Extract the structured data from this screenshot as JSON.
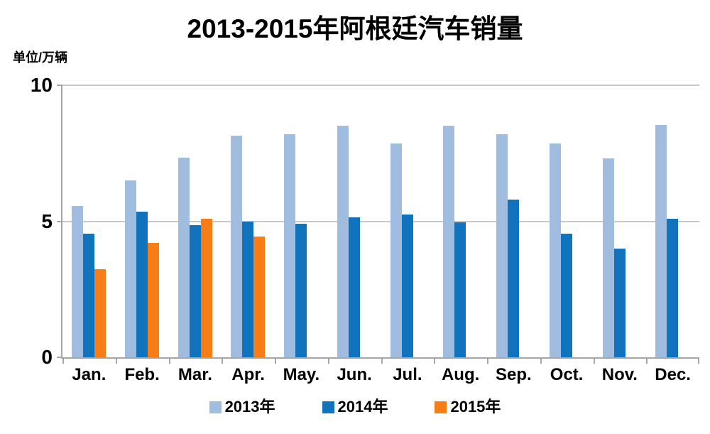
{
  "page": {
    "background": "#FFFFFF"
  },
  "chart_data": {
    "type": "bar",
    "title": "2013-2015年阿根廷汽车销量",
    "unit_label": "单位/万辆",
    "categories": [
      "Jan.",
      "Feb.",
      "Mar.",
      "Apr.",
      "May.",
      "Jun.",
      "Jul.",
      "Aug.",
      "Sep.",
      "Oct.",
      "Nov.",
      "Dec."
    ],
    "series": [
      {
        "name": "2013年",
        "color": "#A0BDE0",
        "values": [
          5.55,
          6.5,
          7.35,
          8.15,
          8.2,
          8.5,
          7.85,
          8.5,
          8.2,
          7.85,
          7.3,
          8.55
        ]
      },
      {
        "name": "2014年",
        "color": "#1173BD",
        "values": [
          4.55,
          5.35,
          4.85,
          5.0,
          4.9,
          5.15,
          5.25,
          4.95,
          5.8,
          4.55,
          4.0,
          5.1
        ]
      },
      {
        "name": "2015年",
        "color": "#F97D16",
        "values": [
          3.25,
          4.2,
          5.1,
          4.45,
          null,
          null,
          null,
          null,
          null,
          null,
          null,
          null
        ]
      }
    ],
    "ylim": [
      0,
      10
    ],
    "yticks": [
      0,
      5,
      10
    ],
    "grid": "horizontal-at-5-and-10",
    "legend_position": "bottom",
    "axis_color": "#A6A6A6",
    "gridline_color": "#C8C8C8"
  }
}
